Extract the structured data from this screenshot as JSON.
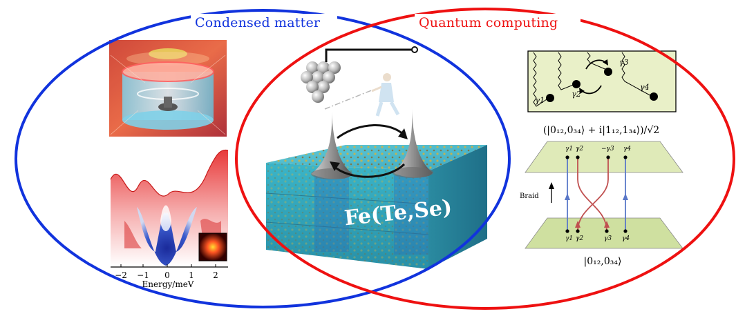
{
  "labels": {
    "left_set": "Condensed matter",
    "right_set": "Quantum computing"
  },
  "colors": {
    "left_set": "#1133dd",
    "right_set": "#ee1111"
  },
  "spectrum_panel": {
    "x_ticks": [
      "−2",
      "−1",
      "0",
      "1",
      "2"
    ],
    "x_label": "Energy/meV"
  },
  "center_panel": {
    "material_label": "Fe(Te,Se)"
  },
  "braid_panel": {
    "top_box_labels": [
      "γ1",
      "γ2",
      "γ3",
      "γ4"
    ],
    "state_after": "(|0₁₂,0₃₄⟩ + i|1₁₂,1₃₄⟩)/√2",
    "upper_plane_labels": [
      "γ1",
      "γ2",
      "−γ3",
      "γ4"
    ],
    "lower_plane_labels": [
      "γ1",
      "γ2",
      "γ3",
      "γ4"
    ],
    "braid_label": "Braid",
    "state_before": "|0₁₂,0₃₄⟩"
  }
}
